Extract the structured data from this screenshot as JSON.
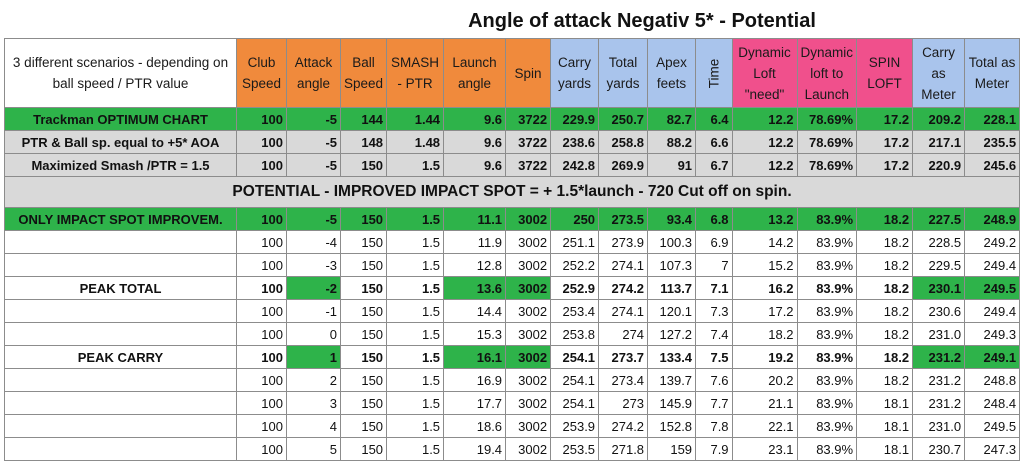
{
  "title": "Angle of attack Negativ 5* - Potential",
  "corner_label": "3 different scenarios - depending on ball speed / PTR value",
  "headers": [
    "Club Speed",
    "Attack angle",
    "Ball Speed",
    "SMASH - PTR",
    "Launch angle",
    "Spin",
    "Carry yards",
    "Total yards",
    "Apex feets",
    "Time",
    "Dynamic Loft \"need\"",
    "Dynamic loft to Launch",
    "SPIN LOFT",
    "Carry as Meter",
    "Total as Meter"
  ],
  "scenarios": [
    {
      "label": "Trackman OPTIMUM CHART",
      "values": [
        "100",
        "-5",
        "144",
        "1.44",
        "9.6",
        "3722",
        "229.9",
        "250.7",
        "82.7",
        "6.4",
        "12.2",
        "78.69%",
        "17.2",
        "209.2",
        "228.1"
      ]
    },
    {
      "label": "PTR & Ball sp. equal to +5* AOA",
      "values": [
        "100",
        "-5",
        "148",
        "1.48",
        "9.6",
        "3722",
        "238.6",
        "258.8",
        "88.2",
        "6.6",
        "12.2",
        "78.69%",
        "17.2",
        "217.1",
        "235.5"
      ]
    },
    {
      "label": "Maximized Smash /PTR = 1.5",
      "values": [
        "100",
        "-5",
        "150",
        "1.5",
        "9.6",
        "3722",
        "242.8",
        "269.9",
        "91",
        "6.7",
        "12.2",
        "78.69%",
        "17.2",
        "220.9",
        "245.6"
      ]
    }
  ],
  "potential_banner": "POTENTIAL - IMPROVED IMPACT SPOT = + 1.5*launch - 720 Cut off on spin.",
  "improvement": {
    "label": "ONLY IMPACT SPOT IMPROVEM.",
    "values": [
      "100",
      "-5",
      "150",
      "1.5",
      "11.1",
      "3002",
      "250",
      "273.5",
      "93.4",
      "6.8",
      "13.2",
      "83.9%",
      "18.2",
      "227.5",
      "248.9"
    ]
  },
  "rows": [
    {
      "label": "",
      "values": [
        "100",
        "-4",
        "150",
        "1.5",
        "11.9",
        "3002",
        "251.1",
        "273.9",
        "100.3",
        "6.9",
        "14.2",
        "83.9%",
        "18.2",
        "228.5",
        "249.2"
      ]
    },
    {
      "label": "",
      "values": [
        "100",
        "-3",
        "150",
        "1.5",
        "12.8",
        "3002",
        "252.2",
        "274.1",
        "107.3",
        "7",
        "15.2",
        "83.9%",
        "18.2",
        "229.5",
        "249.4"
      ]
    },
    {
      "label": "PEAK TOTAL",
      "values": [
        "100",
        "-2",
        "150",
        "1.5",
        "13.6",
        "3002",
        "252.9",
        "274.2",
        "113.7",
        "7.1",
        "16.2",
        "83.9%",
        "18.2",
        "230.1",
        "249.5"
      ]
    },
    {
      "label": "",
      "values": [
        "100",
        "-1",
        "150",
        "1.5",
        "14.4",
        "3002",
        "253.4",
        "274.1",
        "120.1",
        "7.3",
        "17.2",
        "83.9%",
        "18.2",
        "230.6",
        "249.4"
      ]
    },
    {
      "label": "",
      "values": [
        "100",
        "0",
        "150",
        "1.5",
        "15.3",
        "3002",
        "253.8",
        "274",
        "127.2",
        "7.4",
        "18.2",
        "83.9%",
        "18.2",
        "231.0",
        "249.3"
      ]
    },
    {
      "label": "PEAK CARRY",
      "values": [
        "100",
        "1",
        "150",
        "1.5",
        "16.1",
        "3002",
        "254.1",
        "273.7",
        "133.4",
        "7.5",
        "19.2",
        "83.9%",
        "18.2",
        "231.2",
        "249.1"
      ]
    },
    {
      "label": "",
      "values": [
        "100",
        "2",
        "150",
        "1.5",
        "16.9",
        "3002",
        "254.1",
        "273.4",
        "139.7",
        "7.6",
        "20.2",
        "83.9%",
        "18.2",
        "231.2",
        "248.8"
      ]
    },
    {
      "label": "",
      "values": [
        "100",
        "3",
        "150",
        "1.5",
        "17.7",
        "3002",
        "254.1",
        "273",
        "145.9",
        "7.7",
        "21.1",
        "83.9%",
        "18.1",
        "231.2",
        "248.4"
      ]
    },
    {
      "label": "",
      "values": [
        "100",
        "4",
        "150",
        "1.5",
        "18.6",
        "3002",
        "253.9",
        "274.2",
        "152.8",
        "7.8",
        "22.1",
        "83.9%",
        "18.1",
        "231.0",
        "249.5"
      ]
    },
    {
      "label": "",
      "values": [
        "100",
        "5",
        "150",
        "1.5",
        "19.4",
        "3002",
        "253.5",
        "271.8",
        "159",
        "7.9",
        "23.1",
        "83.9%",
        "18.1",
        "230.7",
        "247.3"
      ]
    }
  ]
}
